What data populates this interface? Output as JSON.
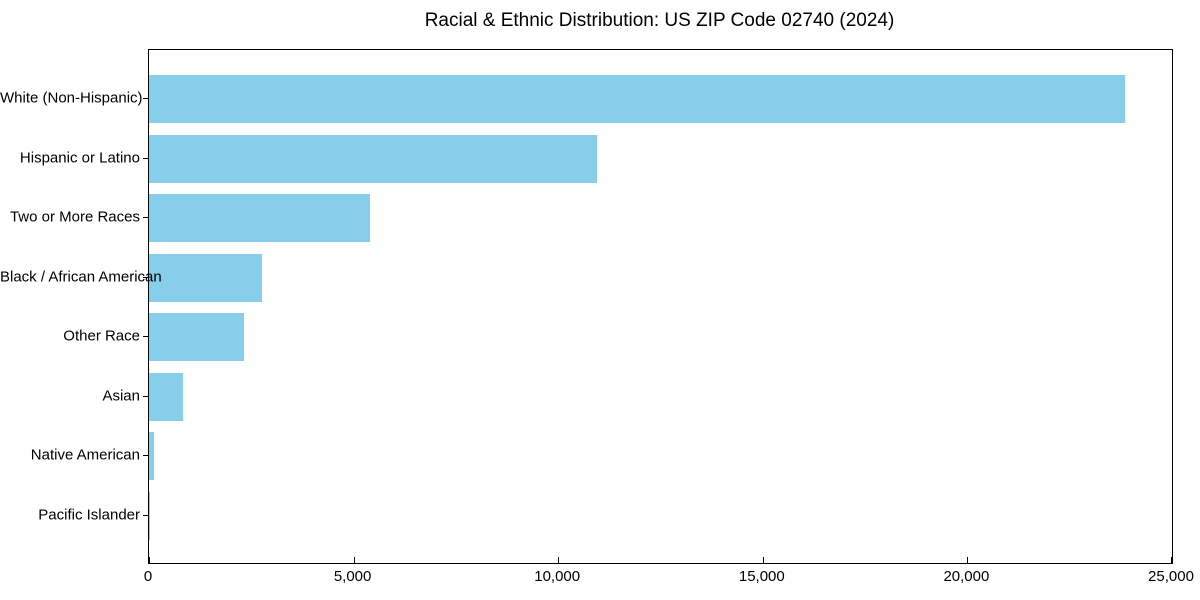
{
  "chart_data": {
    "type": "bar",
    "orientation": "horizontal",
    "title": "Racial & Ethnic Distribution: US ZIP Code 02740 (2024)",
    "xlabel": "",
    "ylabel": "",
    "categories": [
      "White (Non-Hispanic)",
      "Hispanic or Latino",
      "Two or More Races",
      "Black / African American",
      "Other Race",
      "Asian",
      "Native American",
      "Pacific Islander"
    ],
    "values": [
      23850,
      10950,
      5400,
      2750,
      2330,
      840,
      110,
      10
    ],
    "xlim": [
      0,
      25000
    ],
    "xticks": [
      0,
      5000,
      10000,
      15000,
      20000,
      25000
    ],
    "xtick_labels": [
      "0",
      "5,000",
      "10,000",
      "15,000",
      "20,000",
      "25,000"
    ],
    "bar_color": "#87CEEB",
    "grid": false,
    "legend": "none",
    "background_color": "#ffffff"
  }
}
